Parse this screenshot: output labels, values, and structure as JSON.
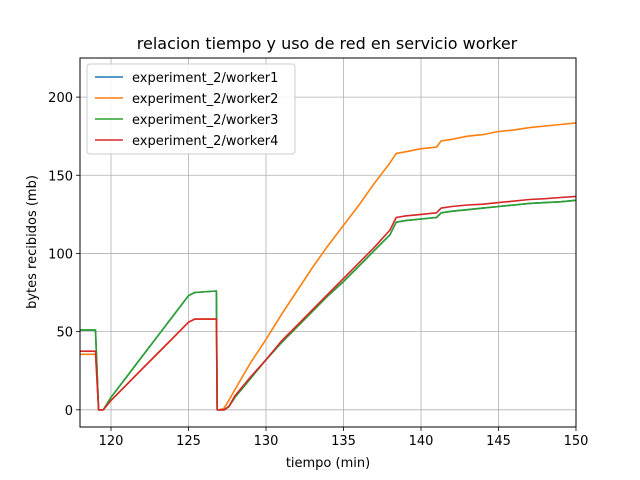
{
  "chart_data": {
    "type": "line",
    "title": "relacion tiempo y uso de red en servicio worker",
    "xlabel": "tiempo (min)",
    "ylabel": "bytes recibidos (mb)",
    "xlim": [
      118,
      150
    ],
    "ylim": [
      -11,
      225
    ],
    "xticks": [
      120,
      125,
      130,
      135,
      140,
      145,
      150
    ],
    "yticks": [
      0,
      50,
      100,
      150,
      200
    ],
    "grid": true,
    "legend_position": "top-left",
    "series": [
      {
        "name": "experiment_2/worker1",
        "color": "#1f77b4",
        "x": [
          118.0,
          118.8,
          119.0,
          119.2,
          119.5,
          120,
          121,
          122,
          123,
          124,
          125,
          125.4,
          126.8,
          126.85,
          127.0,
          127.3,
          127.6,
          128,
          129,
          130,
          131,
          132,
          133,
          134,
          135,
          136,
          137,
          138,
          138.4,
          139,
          140,
          141,
          141.3,
          142,
          143,
          144,
          145,
          146,
          147,
          148,
          149,
          150
        ],
        "y": [
          51,
          51,
          51,
          0,
          0,
          8,
          21,
          34,
          47,
          60,
          73,
          75,
          76,
          0,
          0,
          0,
          2,
          8,
          20,
          32,
          43,
          53,
          63,
          73,
          82,
          92,
          102,
          112,
          120,
          121,
          122,
          123,
          126,
          127,
          128,
          129,
          130,
          131,
          132,
          132.5,
          133,
          134
        ]
      },
      {
        "name": "experiment_2/worker2",
        "color": "#ff7f0e",
        "x": [
          118.0,
          118.8,
          119.0,
          119.2,
          119.5,
          120,
          121,
          122,
          123,
          124,
          125,
          125.4,
          126.8,
          126.85,
          127.0,
          127.3,
          127.6,
          128,
          129,
          130,
          131,
          132,
          133,
          134,
          135,
          136,
          137,
          138,
          138.4,
          139,
          140,
          141,
          141.3,
          142,
          143,
          144,
          145,
          146,
          147,
          148,
          149,
          150
        ],
        "y": [
          35.5,
          35.5,
          35.5,
          0,
          0,
          6,
          16,
          26,
          36,
          46,
          56,
          58,
          58,
          0,
          0,
          1,
          6,
          13,
          30,
          45,
          61,
          76,
          91,
          105,
          118,
          131,
          145,
          158,
          164,
          165,
          167,
          168,
          172,
          173,
          175,
          176,
          178,
          179,
          180.5,
          181.5,
          182.5,
          183.5
        ]
      },
      {
        "name": "experiment_2/worker3",
        "color": "#2ca02c",
        "x": [
          118.0,
          118.8,
          119.0,
          119.2,
          119.5,
          120,
          121,
          122,
          123,
          124,
          125,
          125.4,
          126.8,
          126.85,
          127.0,
          127.3,
          127.6,
          128,
          129,
          130,
          131,
          132,
          133,
          134,
          135,
          136,
          137,
          138,
          138.4,
          139,
          140,
          141,
          141.3,
          142,
          143,
          144,
          145,
          146,
          147,
          148,
          149,
          150
        ],
        "y": [
          51,
          51,
          51,
          0,
          0,
          8,
          21,
          34,
          47,
          60,
          73,
          75,
          76,
          0,
          0,
          0,
          2,
          8,
          20,
          32,
          43,
          53,
          63,
          73,
          82,
          92,
          102,
          112,
          120,
          121,
          122,
          123,
          126,
          127,
          128,
          129,
          130,
          131,
          132,
          132.5,
          133,
          134
        ]
      },
      {
        "name": "experiment_2/worker4",
        "color": "#d62728",
        "x": [
          118.0,
          118.8,
          119.0,
          119.2,
          119.5,
          120,
          121,
          122,
          123,
          124,
          125,
          125.4,
          126.8,
          126.85,
          127.0,
          127.3,
          127.6,
          128,
          129,
          130,
          131,
          132,
          133,
          134,
          135,
          136,
          137,
          138,
          138.4,
          139,
          140,
          141,
          141.3,
          142,
          143,
          144,
          145,
          146,
          147,
          148,
          149,
          150
        ],
        "y": [
          37.5,
          37.5,
          37.5,
          0,
          0,
          6,
          16,
          26,
          36,
          46,
          56,
          58,
          58,
          0,
          0,
          0,
          2,
          9,
          21,
          32,
          44,
          54,
          64,
          74,
          84,
          94,
          104,
          115,
          123,
          124,
          125,
          126,
          129,
          130,
          131,
          131.5,
          132.5,
          133.5,
          134.5,
          135,
          135.8,
          136.5
        ]
      }
    ]
  }
}
